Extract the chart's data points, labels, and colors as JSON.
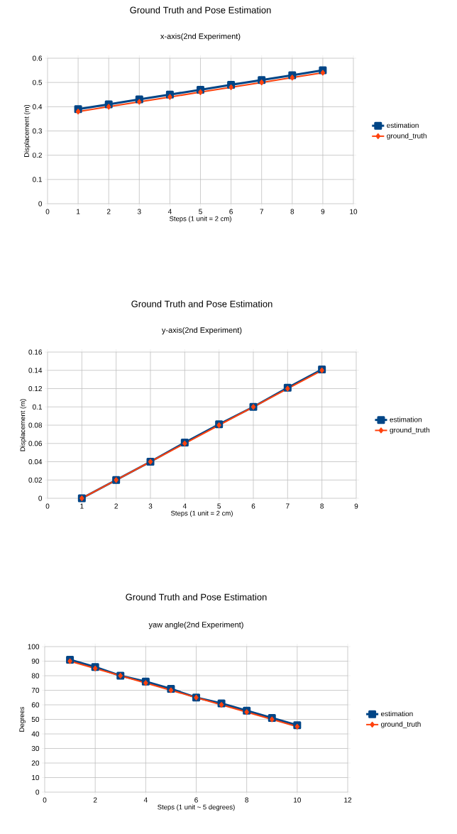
{
  "chart_data": [
    {
      "type": "line",
      "title": "Ground Truth and Pose Estimation",
      "subtitle": "x-axis(2nd Experiment)",
      "xlabel": "Steps (1 unit = 2 cm)",
      "ylabel": "Displacement (m)",
      "x": [
        1,
        2,
        3,
        4,
        5,
        6,
        7,
        8,
        9
      ],
      "xlim": [
        0,
        10
      ],
      "xticks": [
        0,
        1,
        2,
        3,
        4,
        5,
        6,
        7,
        8,
        9,
        10
      ],
      "ylim": [
        0,
        0.6
      ],
      "yticks": [
        0,
        0.1,
        0.2,
        0.3,
        0.4,
        0.5,
        0.6
      ],
      "grid": true,
      "legend": "right",
      "series": [
        {
          "name": "estimation",
          "color": "#004586",
          "marker": "square",
          "values": [
            0.39,
            0.41,
            0.43,
            0.45,
            0.47,
            0.49,
            0.51,
            0.53,
            0.55
          ]
        },
        {
          "name": "ground_truth",
          "color": "#ff420e",
          "marker": "diamond",
          "values": [
            0.38,
            0.4,
            0.42,
            0.44,
            0.46,
            0.48,
            0.5,
            0.52,
            0.54
          ]
        }
      ]
    },
    {
      "type": "line",
      "title": "Ground Truth and Pose Estimation",
      "subtitle": "y-axis(2nd Experiment)",
      "xlabel": "Steps (1 unit = 2 cm)",
      "ylabel": "Displacement (m)",
      "x": [
        1,
        2,
        3,
        4,
        5,
        6,
        7,
        8
      ],
      "xlim": [
        0,
        9
      ],
      "xticks": [
        0,
        1,
        2,
        3,
        4,
        5,
        6,
        7,
        8,
        9
      ],
      "ylim": [
        0,
        0.16
      ],
      "yticks": [
        0,
        0.02,
        0.04,
        0.06,
        0.08,
        0.1,
        0.12,
        0.14,
        0.16
      ],
      "grid": true,
      "legend": "right",
      "series": [
        {
          "name": "estimation",
          "color": "#004586",
          "marker": "square",
          "values": [
            0,
            0.02,
            0.04,
            0.061,
            0.081,
            0.1,
            0.121,
            0.141
          ]
        },
        {
          "name": "ground_truth",
          "color": "#ff420e",
          "marker": "diamond",
          "values": [
            0,
            0.02,
            0.04,
            0.06,
            0.08,
            0.1,
            0.12,
            0.14
          ]
        }
      ]
    },
    {
      "type": "line",
      "title": "Ground Truth and Pose Estimation",
      "subtitle": "yaw angle(2nd Experiment)",
      "xlabel": "Steps (1 unit ~ 5 degrees)",
      "ylabel": "Degrees",
      "x": [
        1,
        2,
        3,
        4,
        5,
        6,
        7,
        8,
        9,
        10
      ],
      "xlim": [
        0,
        12
      ],
      "xticks": [
        0,
        2,
        4,
        6,
        8,
        10,
        12
      ],
      "ylim": [
        0,
        100
      ],
      "yticks": [
        0,
        10,
        20,
        30,
        40,
        50,
        60,
        70,
        80,
        90,
        100
      ],
      "grid": true,
      "legend": "right",
      "series": [
        {
          "name": "estimation",
          "color": "#004586",
          "marker": "square",
          "values": [
            91,
            86,
            80,
            76,
            71,
            65,
            61,
            56,
            51,
            46
          ]
        },
        {
          "name": "ground_truth",
          "color": "#ff420e",
          "marker": "diamond",
          "values": [
            90,
            85,
            80,
            75,
            70,
            65,
            60,
            55,
            50,
            45
          ]
        }
      ]
    }
  ]
}
